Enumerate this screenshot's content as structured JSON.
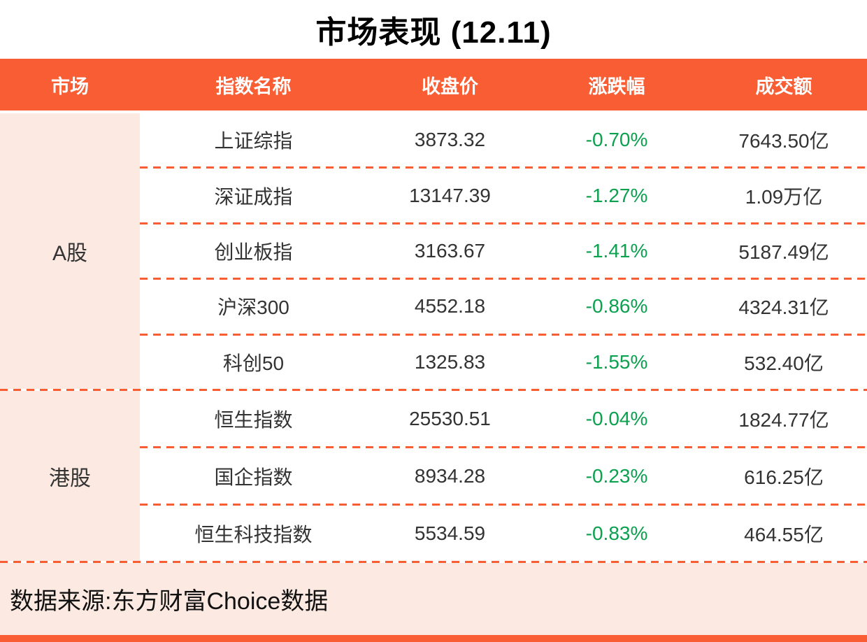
{
  "colors": {
    "accent": "#F95D33",
    "panel-pink": "#FCE9E2",
    "negative-green": "#0BA14F",
    "header-text": "#FFFFFF",
    "body-text": "#333333"
  },
  "chart_data": {
    "type": "table",
    "title": "市场表现 (12.11)",
    "columns": [
      "市场",
      "指数名称",
      "收盘价",
      "涨跌幅",
      "成交额"
    ],
    "groups": [
      {
        "market": "A股",
        "rows": [
          {
            "name": "上证综指",
            "close": "3873.32",
            "change": "-0.70%",
            "turnover": "7643.50亿"
          },
          {
            "name": "深证成指",
            "close": "13147.39",
            "change": "-1.27%",
            "turnover": "1.09万亿"
          },
          {
            "name": "创业板指",
            "close": "3163.67",
            "change": "-1.41%",
            "turnover": "5187.49亿"
          },
          {
            "name": "沪深300",
            "close": "4552.18",
            "change": "-0.86%",
            "turnover": "4324.31亿"
          },
          {
            "name": "科创50",
            "close": "1325.83",
            "change": "-1.55%",
            "turnover": "532.40亿"
          }
        ]
      },
      {
        "market": "港股",
        "rows": [
          {
            "name": "恒生指数",
            "close": "25530.51",
            "change": "-0.04%",
            "turnover": "1824.77亿"
          },
          {
            "name": "国企指数",
            "close": "8934.28",
            "change": "-0.23%",
            "turnover": "616.25亿"
          },
          {
            "name": "恒生科技指数",
            "close": "5534.59",
            "change": "-0.83%",
            "turnover": "464.55亿"
          }
        ]
      }
    ],
    "source_note": "数据来源:东方财富Choice数据"
  }
}
